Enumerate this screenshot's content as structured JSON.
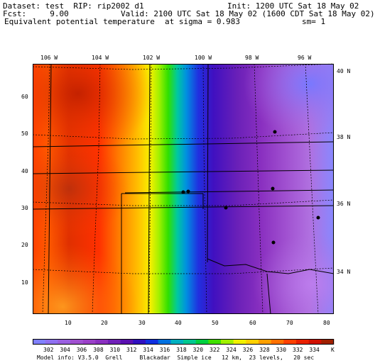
{
  "header": {
    "dataset": "Dataset: test  RIP: rip2002 d1",
    "init": "Init: 1200 UTC Sat 18 May 02",
    "fcst": "Fcst:     9.00",
    "valid": "Valid: 2100 UTC Sat 18 May 02 (1600 CDT Sat 18 May 02)",
    "field": "Equivalent potential temperature",
    "level": "at sigma = 0.983",
    "sm": "sm= 1"
  },
  "map": {
    "lon_labels": [
      "106 W",
      "104 W",
      "102 W",
      "100 W",
      "98 W",
      "96 W"
    ],
    "lat_labels": [
      "40 N",
      "38 N",
      "36 N",
      "34 N"
    ],
    "x_ticks": [
      "10",
      "20",
      "30",
      "40",
      "50",
      "60",
      "70",
      "80"
    ],
    "y_ticks": [
      "60",
      "50",
      "40",
      "30",
      "20",
      "10"
    ]
  },
  "colorbar": {
    "labels": [
      "302",
      "304",
      "306",
      "308",
      "310",
      "312",
      "314",
      "316",
      "318",
      "320",
      "322",
      "324",
      "326",
      "328",
      "330",
      "332",
      "334"
    ],
    "unit": "K",
    "colors": [
      "#8080ff",
      "#8f70f0",
      "#9a60e0",
      "#a050d0",
      "#9a40c8",
      "#8a30c0",
      "#7020b8",
      "#5a10b0",
      "#3010c0",
      "#1030e0",
      "#0070e0",
      "#00b0c0",
      "#00c890",
      "#00d040",
      "#40e000",
      "#a0f000",
      "#f0f000",
      "#ffd000",
      "#ffa000",
      "#ff7000",
      "#ff4000",
      "#e82000",
      "#d01000",
      "#a02000"
    ]
  },
  "footer": {
    "model_info": "Model info: V3.5.0  Grell     Blackadar  Simple ice   12 km,  23 levels,   20 sec"
  }
}
